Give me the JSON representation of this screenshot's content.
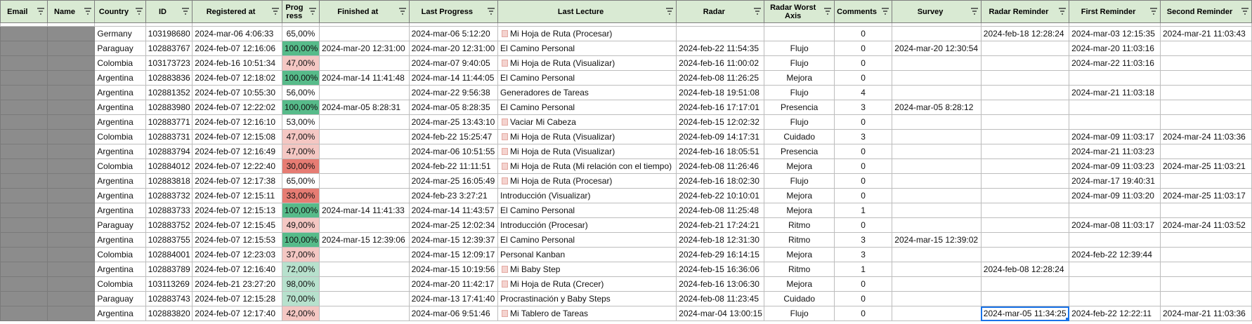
{
  "columns": [
    "Email",
    "Name",
    "Country",
    "ID",
    "Registered at",
    "Prog ress",
    "Finished at",
    "Last Progress",
    "Last Lecture",
    "Radar",
    "Radar Worst Axis",
    "Comments",
    "Survey",
    "Radar Reminder",
    "First Reminder",
    "Second Reminder"
  ],
  "colors": {
    "header_bg": "#d9ead3",
    "progress_full": "#57bb8a",
    "progress_high": "#b7e1cd",
    "progress_mid": "#ffffff",
    "progress_low": "#f4c7c3",
    "progress_lowest": "#e67c73",
    "masked": "#8c8c8c",
    "selection": "#1a73e8"
  },
  "rows": [
    {
      "country": "Germany",
      "id": "103198680",
      "registered": "2024-mar-06 4:06:33",
      "progress": "65,00%",
      "progress_value": 65,
      "finished": "",
      "last_progress": "2024-mar-06 5:12:20",
      "lecture": "Mi Hoja de Ruta (Procesar)",
      "lecture_icon": "document-icon",
      "radar": "",
      "worst_axis": "",
      "comments": "0",
      "survey": "",
      "radar_reminder": "2024-feb-18 12:28:24",
      "first_reminder": "2024-mar-03 12:15:35",
      "second_reminder": "2024-mar-21 11:03:43"
    },
    {
      "country": "Paraguay",
      "id": "102883767",
      "registered": "2024-feb-07 12:16:06",
      "progress": "100,00%",
      "progress_value": 100,
      "finished": "2024-mar-20 12:31:00",
      "last_progress": "2024-mar-20 12:31:00",
      "lecture": "El Camino Personal",
      "lecture_icon": "",
      "radar": "2024-feb-22 11:54:35",
      "worst_axis": "Flujo",
      "comments": "0",
      "survey": "2024-mar-20 12:30:54",
      "radar_reminder": "",
      "first_reminder": "2024-mar-20 11:03:16",
      "second_reminder": ""
    },
    {
      "country": "Colombia",
      "id": "103173723",
      "registered": "2024-feb-16 10:51:34",
      "progress": "47,00%",
      "progress_value": 47,
      "finished": "",
      "last_progress": "2024-mar-07 9:40:05",
      "lecture": "Mi Hoja de Ruta (Visualizar)",
      "lecture_icon": "document-icon",
      "radar": "2024-feb-16 11:00:02",
      "worst_axis": "Flujo",
      "comments": "0",
      "survey": "",
      "radar_reminder": "",
      "first_reminder": "2024-mar-22 11:03:16",
      "second_reminder": ""
    },
    {
      "country": "Argentina",
      "id": "102883836",
      "registered": "2024-feb-07 12:18:02",
      "progress": "100,00%",
      "progress_value": 100,
      "finished": "2024-mar-14 11:41:48",
      "last_progress": "2024-mar-14 11:44:05",
      "lecture": "El Camino Personal",
      "lecture_icon": "",
      "radar": "2024-feb-08 11:26:25",
      "worst_axis": "Mejora",
      "comments": "0",
      "survey": "",
      "radar_reminder": "",
      "first_reminder": "",
      "second_reminder": ""
    },
    {
      "country": "Argentina",
      "id": "102881352",
      "registered": "2024-feb-07 10:55:30",
      "progress": "56,00%",
      "progress_value": 56,
      "finished": "",
      "last_progress": "2024-mar-22 9:56:38",
      "lecture": "Generadores de Tareas",
      "lecture_icon": "",
      "radar": "2024-feb-18 19:51:08",
      "worst_axis": "Flujo",
      "comments": "4",
      "survey": "",
      "radar_reminder": "",
      "first_reminder": "2024-mar-21 11:03:18",
      "second_reminder": ""
    },
    {
      "country": "Argentina",
      "id": "102883980",
      "registered": "2024-feb-07 12:22:02",
      "progress": "100,00%",
      "progress_value": 100,
      "finished": "2024-mar-05 8:28:31",
      "last_progress": "2024-mar-05 8:28:35",
      "lecture": "El Camino Personal",
      "lecture_icon": "",
      "radar": "2024-feb-16 17:17:01",
      "worst_axis": "Presencia",
      "comments": "3",
      "survey": "2024-mar-05 8:28:12",
      "radar_reminder": "",
      "first_reminder": "",
      "second_reminder": ""
    },
    {
      "country": "Argentina",
      "id": "102883771",
      "registered": "2024-feb-07 12:16:10",
      "progress": "53,00%",
      "progress_value": 53,
      "finished": "",
      "last_progress": "2024-mar-25 13:43:10",
      "lecture": "Vaciar Mi Cabeza",
      "lecture_icon": "document-icon",
      "radar": "2024-feb-15 12:02:32",
      "worst_axis": "Flujo",
      "comments": "0",
      "survey": "",
      "radar_reminder": "",
      "first_reminder": "",
      "second_reminder": ""
    },
    {
      "country": "Colombia",
      "id": "102883731",
      "registered": "2024-feb-07 12:15:08",
      "progress": "47,00%",
      "progress_value": 47,
      "finished": "",
      "last_progress": "2024-feb-22 15:25:47",
      "lecture": "Mi Hoja de Ruta (Visualizar)",
      "lecture_icon": "document-icon",
      "radar": "2024-feb-09 14:17:31",
      "worst_axis": "Cuidado",
      "comments": "3",
      "survey": "",
      "radar_reminder": "",
      "first_reminder": "2024-mar-09 11:03:17",
      "second_reminder": "2024-mar-24 11:03:36"
    },
    {
      "country": "Argentina",
      "id": "102883794",
      "registered": "2024-feb-07 12:16:49",
      "progress": "47,00%",
      "progress_value": 47,
      "finished": "",
      "last_progress": "2024-mar-06 10:51:55",
      "lecture": "Mi Hoja de Ruta (Visualizar)",
      "lecture_icon": "document-icon",
      "radar": "2024-feb-16 18:05:51",
      "worst_axis": "Presencia",
      "comments": "0",
      "survey": "",
      "radar_reminder": "",
      "first_reminder": "2024-mar-21 11:03:23",
      "second_reminder": ""
    },
    {
      "country": "Colombia",
      "id": "102884012",
      "registered": "2024-feb-07 12:22:40",
      "progress": "30,00%",
      "progress_value": 30,
      "finished": "",
      "last_progress": "2024-feb-22 11:11:51",
      "lecture": "Mi Hoja de Ruta (Mi relación con el tiempo)",
      "lecture_icon": "document-icon",
      "radar": "2024-feb-08 11:26:46",
      "worst_axis": "Mejora",
      "comments": "0",
      "survey": "",
      "radar_reminder": "",
      "first_reminder": "2024-mar-09 11:03:23",
      "second_reminder": "2024-mar-25 11:03:21"
    },
    {
      "country": "Argentina",
      "id": "102883818",
      "registered": "2024-feb-07 12:17:38",
      "progress": "65,00%",
      "progress_value": 65,
      "finished": "",
      "last_progress": "2024-mar-25 16:05:49",
      "lecture": "Mi Hoja de Ruta (Procesar)",
      "lecture_icon": "document-icon",
      "radar": "2024-feb-16 18:02:30",
      "worst_axis": "Flujo",
      "comments": "0",
      "survey": "",
      "radar_reminder": "",
      "first_reminder": "2024-mar-17 19:40:31",
      "second_reminder": ""
    },
    {
      "country": "Argentina",
      "id": "102883732",
      "registered": "2024-feb-07 12:15:11",
      "progress": "33,00%",
      "progress_value": 33,
      "finished": "",
      "last_progress": "2024-feb-23 3:27:21",
      "lecture": "Introducción (Visualizar)",
      "lecture_icon": "",
      "radar": "2024-feb-22 10:10:01",
      "worst_axis": "Mejora",
      "comments": "0",
      "survey": "",
      "radar_reminder": "",
      "first_reminder": "2024-mar-09 11:03:20",
      "second_reminder": "2024-mar-25 11:03:17"
    },
    {
      "country": "Argentina",
      "id": "102883733",
      "registered": "2024-feb-07 12:15:13",
      "progress": "100,00%",
      "progress_value": 100,
      "finished": "2024-mar-14 11:41:33",
      "last_progress": "2024-mar-14 11:43:57",
      "lecture": "El Camino Personal",
      "lecture_icon": "",
      "radar": "2024-feb-08 11:25:48",
      "worst_axis": "Mejora",
      "comments": "1",
      "survey": "",
      "radar_reminder": "",
      "first_reminder": "",
      "second_reminder": ""
    },
    {
      "country": "Paraguay",
      "id": "102883752",
      "registered": "2024-feb-07 12:15:45",
      "progress": "49,00%",
      "progress_value": 49,
      "finished": "",
      "last_progress": "2024-mar-25 12:02:34",
      "lecture": "Introducción (Procesar)",
      "lecture_icon": "",
      "radar": "2024-feb-21 17:24:21",
      "worst_axis": "Ritmo",
      "comments": "0",
      "survey": "",
      "radar_reminder": "",
      "first_reminder": "2024-mar-08 11:03:17",
      "second_reminder": "2024-mar-24 11:03:52"
    },
    {
      "country": "Argentina",
      "id": "102883755",
      "registered": "2024-feb-07 12:15:53",
      "progress": "100,00%",
      "progress_value": 100,
      "finished": "2024-mar-15 12:39:06",
      "last_progress": "2024-mar-15 12:39:37",
      "lecture": "El Camino Personal",
      "lecture_icon": "",
      "radar": "2024-feb-18 12:31:30",
      "worst_axis": "Ritmo",
      "comments": "3",
      "survey": "2024-mar-15 12:39:02",
      "radar_reminder": "",
      "first_reminder": "",
      "second_reminder": ""
    },
    {
      "country": "Colombia",
      "id": "102884001",
      "registered": "2024-feb-07 12:23:03",
      "progress": "37,00%",
      "progress_value": 37,
      "finished": "",
      "last_progress": "2024-mar-15 12:09:17",
      "lecture": "Personal Kanban",
      "lecture_icon": "",
      "radar": "2024-feb-29 16:14:15",
      "worst_axis": "Mejora",
      "comments": "3",
      "survey": "",
      "radar_reminder": "",
      "first_reminder": "2024-feb-22 12:39:44",
      "second_reminder": ""
    },
    {
      "country": "Argentina",
      "id": "102883789",
      "registered": "2024-feb-07 12:16:40",
      "progress": "72,00%",
      "progress_value": 72,
      "finished": "",
      "last_progress": "2024-mar-15 10:19:56",
      "lecture": "Mi Baby Step",
      "lecture_icon": "document-icon",
      "radar": "2024-feb-15 16:36:06",
      "worst_axis": "Ritmo",
      "comments": "1",
      "survey": "",
      "radar_reminder": "2024-feb-08 12:28:24",
      "first_reminder": "",
      "second_reminder": ""
    },
    {
      "country": "Colombia",
      "id": "103113269",
      "registered": "2024-feb-21 23:27:20",
      "progress": "98,00%",
      "progress_value": 98,
      "finished": "",
      "last_progress": "2024-mar-20 11:42:17",
      "lecture": "Mi Hoja de Ruta (Crecer)",
      "lecture_icon": "document-icon",
      "radar": "2024-feb-16 13:06:30",
      "worst_axis": "Mejora",
      "comments": "0",
      "survey": "",
      "radar_reminder": "",
      "first_reminder": "",
      "second_reminder": ""
    },
    {
      "country": "Paraguay",
      "id": "102883743",
      "registered": "2024-feb-07 12:15:28",
      "progress": "70,00%",
      "progress_value": 70,
      "finished": "",
      "last_progress": "2024-mar-13 17:41:40",
      "lecture": "Procrastinación y Baby Steps",
      "lecture_icon": "",
      "radar": "2024-feb-08 11:23:45",
      "worst_axis": "Cuidado",
      "comments": "0",
      "survey": "",
      "radar_reminder": "",
      "first_reminder": "",
      "second_reminder": ""
    },
    {
      "country": "Argentina",
      "id": "102883820",
      "registered": "2024-feb-07 12:17:40",
      "progress": "42,00%",
      "progress_value": 42,
      "finished": "",
      "last_progress": "2024-mar-06 9:51:46",
      "lecture": "Mi Tablero de Tareas",
      "lecture_icon": "document-icon",
      "radar": "2024-mar-04 13:00:15",
      "worst_axis": "Flujo",
      "comments": "0",
      "survey": "",
      "radar_reminder": "2024-mar-05 11:34:25",
      "first_reminder": "2024-feb-22 12:22:11",
      "second_reminder": "2024-mar-21 11:03:36",
      "selected_cell": "radar_reminder"
    }
  ]
}
